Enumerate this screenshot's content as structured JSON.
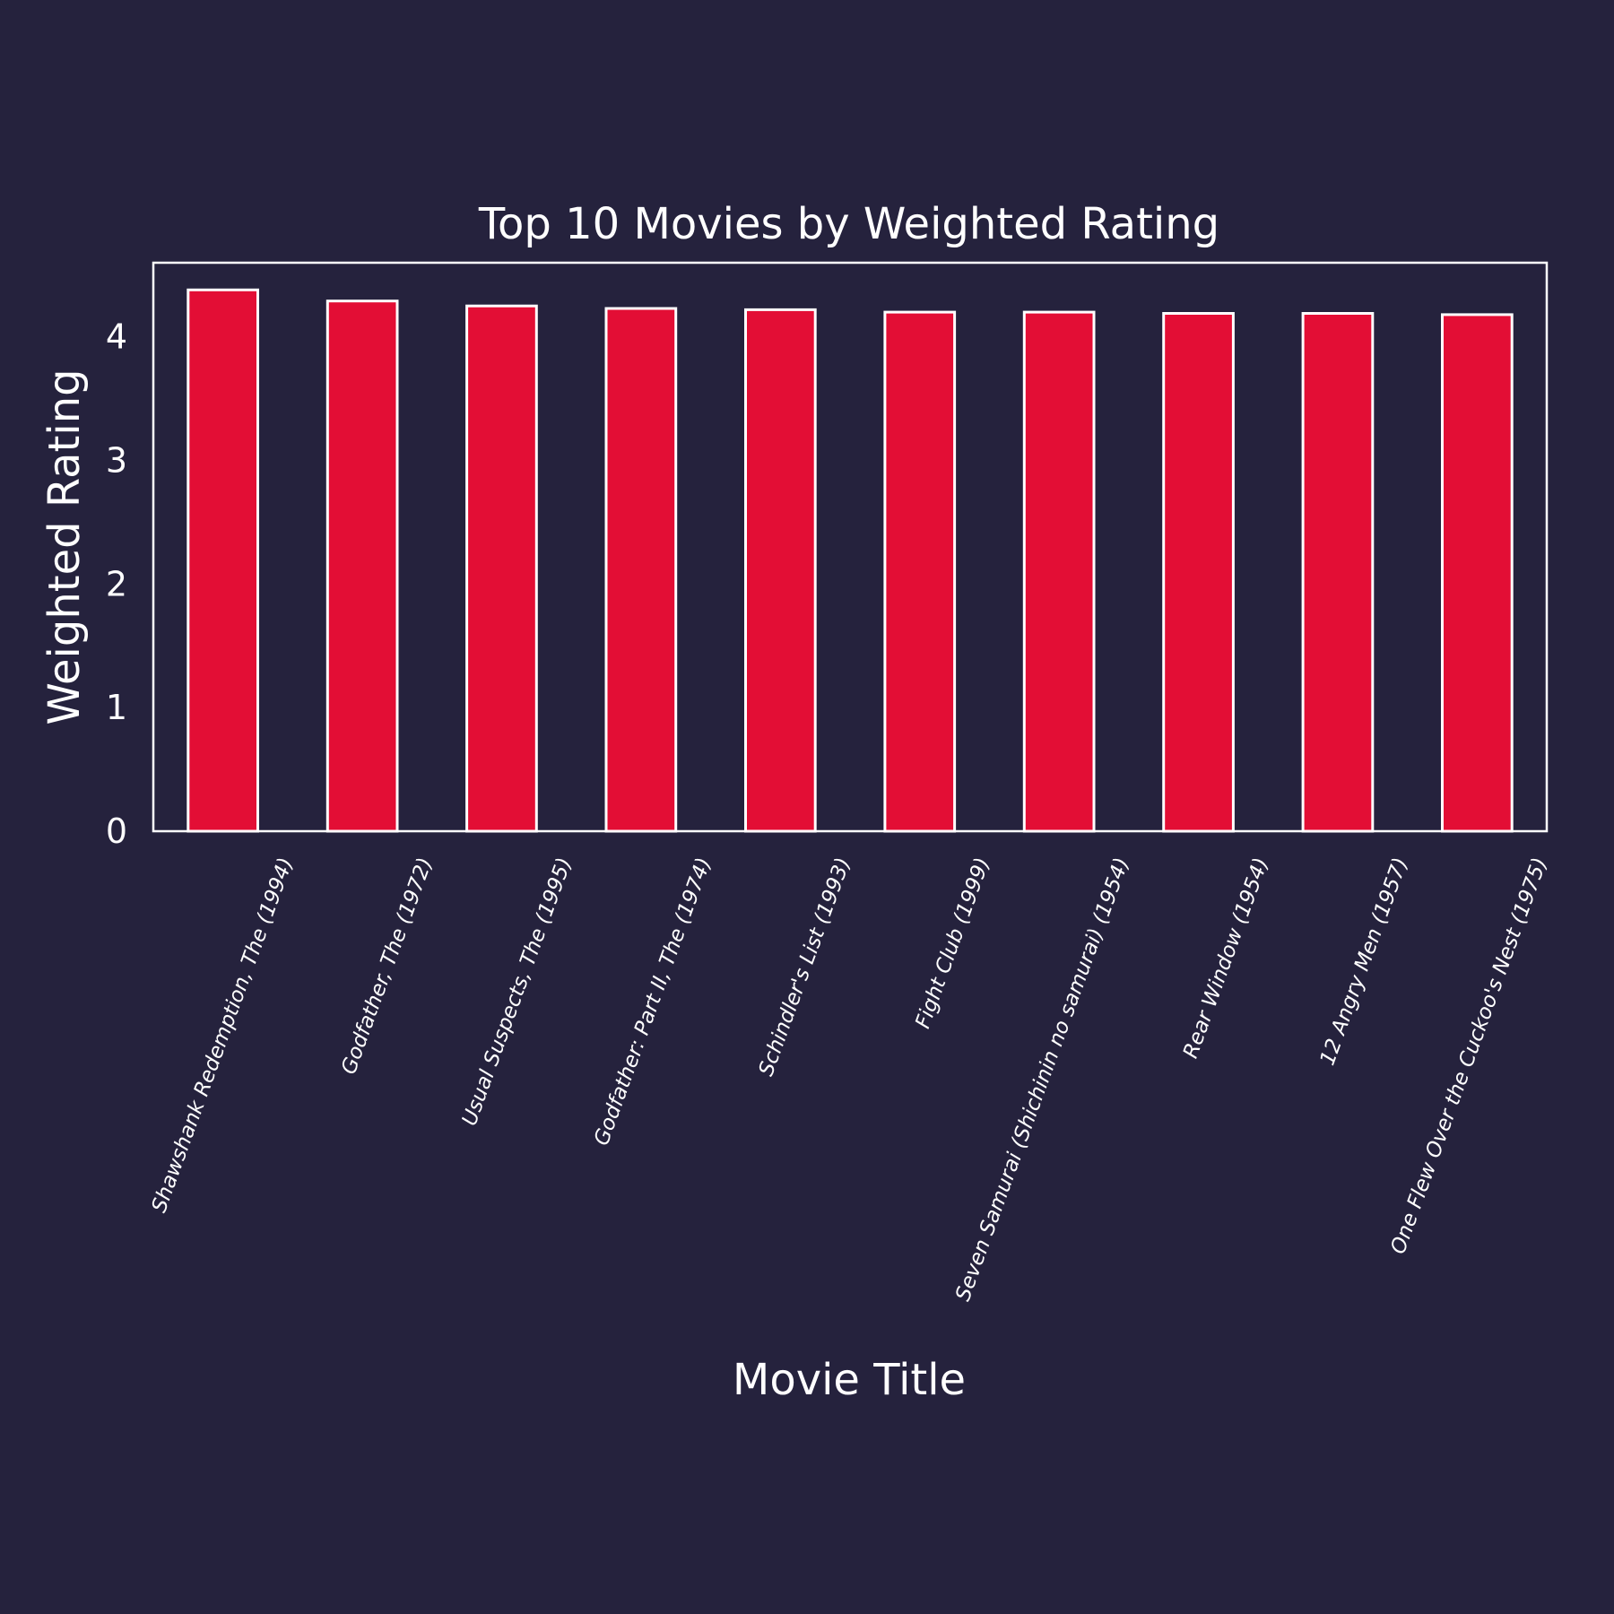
{
  "chart_data": {
    "type": "bar",
    "title": "Top 10 Movies by Weighted Rating",
    "xlabel": "Movie Title",
    "ylabel": "Weighted Rating",
    "categories": [
      "Shawshank Redemption, The (1994)",
      "Godfather, The (1972)",
      "Usual Suspects, The (1995)",
      "Godfather: Part II, The (1974)",
      "Schindler's List (1993)",
      "Fight Club (1999)",
      "Seven Samurai (Shichinin no samurai) (1954)",
      "Rear Window (1954)",
      "12 Angry Men (1957)",
      "One Flew Over the Cuckoo's Nest (1975)"
    ],
    "values": [
      4.38,
      4.29,
      4.25,
      4.23,
      4.22,
      4.2,
      4.2,
      4.19,
      4.19,
      4.18
    ],
    "yticks": [
      "0",
      "1",
      "2",
      "3",
      "4"
    ],
    "ylim": [
      0,
      4.6
    ],
    "grid": false,
    "legend": "none"
  },
  "colors": {
    "background": "#25223d",
    "bar_fill": "#e30e35",
    "bar_edge": "#ffffff",
    "text": "#ffffff"
  }
}
